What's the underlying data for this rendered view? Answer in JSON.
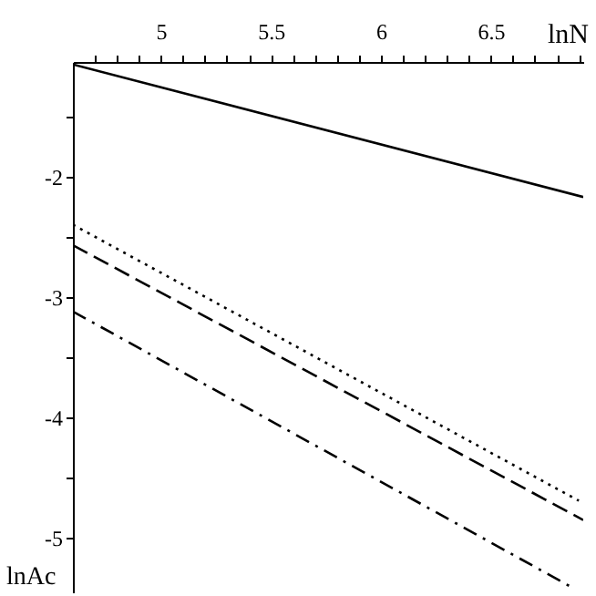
{
  "chart_data": {
    "type": "line",
    "xlabel": "lnN",
    "ylabel": "lnAc",
    "xlim": [
      4.6,
      6.92
    ],
    "ylim": [
      -5.45,
      -1.05
    ],
    "xticks": [
      {
        "value": 4.7,
        "label": null
      },
      {
        "value": 4.8,
        "label": null
      },
      {
        "value": 4.9,
        "label": null
      },
      5,
      {
        "value": 5.1,
        "label": null
      },
      {
        "value": 5.2,
        "label": null
      },
      {
        "value": 5.3,
        "label": null
      },
      {
        "value": 5.4,
        "label": null
      },
      5.5,
      {
        "value": 5.6,
        "label": null
      },
      {
        "value": 5.7,
        "label": null
      },
      {
        "value": 5.8,
        "label": null
      },
      {
        "value": 5.9,
        "label": null
      },
      6,
      {
        "value": 6.1,
        "label": null
      },
      {
        "value": 6.2,
        "label": null
      },
      {
        "value": 6.3,
        "label": null
      },
      {
        "value": 6.4,
        "label": null
      },
      6.5,
      {
        "value": 6.6,
        "label": null
      },
      {
        "value": 6.7,
        "label": null
      },
      {
        "value": 6.8,
        "label": null
      },
      {
        "value": 6.9,
        "label": null
      }
    ],
    "yticks": [
      {
        "value": -1.5,
        "label": null
      },
      -2,
      {
        "value": -2.5,
        "label": null
      },
      -3,
      {
        "value": -3.5,
        "label": null
      },
      -4,
      {
        "value": -4.5,
        "label": null
      },
      -5
    ],
    "marker": "none",
    "series": [
      {
        "color": "#000000",
        "line_style": "solid",
        "x": [
          4.6,
          6.92
        ],
        "values": [
          -1.07,
          -2.17
        ]
      },
      {
        "color": "#000000",
        "line_style": "dotted",
        "x": [
          4.6,
          6.9
        ],
        "values": [
          -2.4,
          -4.69
        ]
      },
      {
        "color": "#000000",
        "line_style": "dashed",
        "x": [
          4.6,
          6.92
        ],
        "values": [
          -2.57,
          -4.85
        ]
      },
      {
        "color": "#000000",
        "line_style": "dashdot",
        "x": [
          4.6,
          6.86
        ],
        "values": [
          -3.12,
          -5.4
        ]
      }
    ]
  }
}
